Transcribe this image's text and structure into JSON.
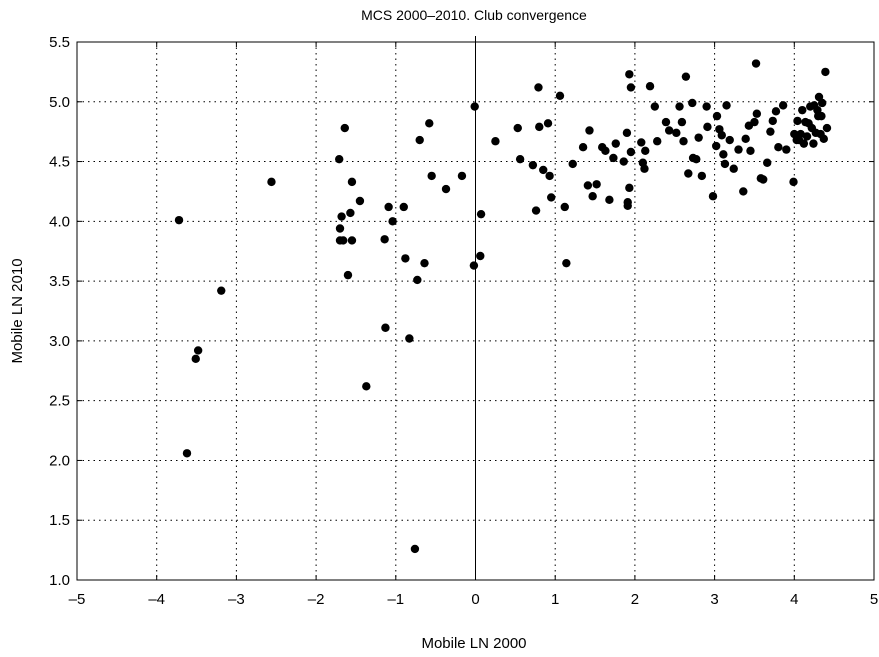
{
  "chart_data": {
    "type": "scatter",
    "title": "MCS 2000–2010. Club convergence",
    "xlabel": "Mobile LN 2000",
    "ylabel": "Mobile LN 2010",
    "xlim": [
      -5,
      5
    ],
    "ylim": [
      1.0,
      5.5
    ],
    "xticks": [
      -5,
      -4,
      -3,
      -2,
      -1,
      0,
      1,
      2,
      3,
      4,
      5
    ],
    "xtick_labels": [
      "–5",
      "–4",
      "–3",
      "–2",
      "–1",
      "0",
      "1",
      "2",
      "3",
      "4",
      "5"
    ],
    "yticks": [
      1.0,
      1.5,
      2.0,
      2.5,
      3.0,
      3.5,
      4.0,
      4.5,
      5.0,
      5.5
    ],
    "ytick_labels": [
      "1.0",
      "1.5",
      "2.0",
      "2.5",
      "3.0",
      "3.5",
      "4.0",
      "4.5",
      "5.0",
      "5.5"
    ],
    "grid": true,
    "vertical_reference_line_x": 0,
    "points": [
      [
        -3.72,
        4.01
      ],
      [
        -3.62,
        2.06
      ],
      [
        -3.51,
        2.85
      ],
      [
        -3.48,
        2.92
      ],
      [
        -3.19,
        3.42
      ],
      [
        -2.56,
        4.33
      ],
      [
        -1.71,
        4.52
      ],
      [
        -1.7,
        3.94
      ],
      [
        -1.7,
        3.84
      ],
      [
        -1.68,
        4.04
      ],
      [
        -1.66,
        3.84
      ],
      [
        -1.64,
        4.78
      ],
      [
        -1.6,
        3.55
      ],
      [
        -1.57,
        4.07
      ],
      [
        -1.55,
        4.33
      ],
      [
        -1.55,
        3.84
      ],
      [
        -1.45,
        4.17
      ],
      [
        -1.37,
        2.62
      ],
      [
        -1.14,
        3.85
      ],
      [
        -1.13,
        3.11
      ],
      [
        -1.09,
        4.12
      ],
      [
        -1.04,
        4.0
      ],
      [
        -0.9,
        4.12
      ],
      [
        -0.88,
        3.69
      ],
      [
        -0.83,
        3.02
      ],
      [
        -0.76,
        1.26
      ],
      [
        -0.73,
        3.51
      ],
      [
        -0.7,
        4.68
      ],
      [
        -0.64,
        3.65
      ],
      [
        -0.58,
        4.82
      ],
      [
        -0.55,
        4.38
      ],
      [
        -0.37,
        4.27
      ],
      [
        -0.17,
        4.38
      ],
      [
        -0.02,
        3.63
      ],
      [
        -0.01,
        4.96
      ],
      [
        0.06,
        3.71
      ],
      [
        0.07,
        4.06
      ],
      [
        0.25,
        4.67
      ],
      [
        0.53,
        4.78
      ],
      [
        0.56,
        4.52
      ],
      [
        0.72,
        4.47
      ],
      [
        0.76,
        4.09
      ],
      [
        0.79,
        5.12
      ],
      [
        0.8,
        4.79
      ],
      [
        0.85,
        4.43
      ],
      [
        0.91,
        4.82
      ],
      [
        0.93,
        4.38
      ],
      [
        0.95,
        4.2
      ],
      [
        1.06,
        5.05
      ],
      [
        1.12,
        4.12
      ],
      [
        1.14,
        3.65
      ],
      [
        1.22,
        4.48
      ],
      [
        1.35,
        4.62
      ],
      [
        1.41,
        4.3
      ],
      [
        1.43,
        4.76
      ],
      [
        1.47,
        4.21
      ],
      [
        1.52,
        4.31
      ],
      [
        1.59,
        4.62
      ],
      [
        1.63,
        4.59
      ],
      [
        1.68,
        4.18
      ],
      [
        1.73,
        4.53
      ],
      [
        1.76,
        4.65
      ],
      [
        1.86,
        4.5
      ],
      [
        1.9,
        4.74
      ],
      [
        1.91,
        4.16
      ],
      [
        1.91,
        4.13
      ],
      [
        1.93,
        4.28
      ],
      [
        1.93,
        5.23
      ],
      [
        1.95,
        5.12
      ],
      [
        1.95,
        4.58
      ],
      [
        2.08,
        4.66
      ],
      [
        2.1,
        4.49
      ],
      [
        2.12,
        4.44
      ],
      [
        2.13,
        4.59
      ],
      [
        2.19,
        5.13
      ],
      [
        2.25,
        4.96
      ],
      [
        2.28,
        4.67
      ],
      [
        2.39,
        4.83
      ],
      [
        2.43,
        4.76
      ],
      [
        2.52,
        4.74
      ],
      [
        2.56,
        4.96
      ],
      [
        2.59,
        4.83
      ],
      [
        2.61,
        4.67
      ],
      [
        2.64,
        5.21
      ],
      [
        2.67,
        4.4
      ],
      [
        2.72,
        4.99
      ],
      [
        2.73,
        4.53
      ],
      [
        2.77,
        4.52
      ],
      [
        2.8,
        4.7
      ],
      [
        2.84,
        4.38
      ],
      [
        2.9,
        4.96
      ],
      [
        2.91,
        4.79
      ],
      [
        2.98,
        4.21
      ],
      [
        3.02,
        4.63
      ],
      [
        3.03,
        4.88
      ],
      [
        3.06,
        4.77
      ],
      [
        3.09,
        4.72
      ],
      [
        3.11,
        4.56
      ],
      [
        3.13,
        4.48
      ],
      [
        3.15,
        4.97
      ],
      [
        3.19,
        4.68
      ],
      [
        3.24,
        4.44
      ],
      [
        3.3,
        4.6
      ],
      [
        3.36,
        4.25
      ],
      [
        3.39,
        4.69
      ],
      [
        3.43,
        4.8
      ],
      [
        3.45,
        4.59
      ],
      [
        3.5,
        4.83
      ],
      [
        3.52,
        5.32
      ],
      [
        3.53,
        4.9
      ],
      [
        3.58,
        4.36
      ],
      [
        3.61,
        4.35
      ],
      [
        3.66,
        4.49
      ],
      [
        3.7,
        4.75
      ],
      [
        3.73,
        4.84
      ],
      [
        3.77,
        4.92
      ],
      [
        3.8,
        4.62
      ],
      [
        3.86,
        4.97
      ],
      [
        3.9,
        4.6
      ],
      [
        3.99,
        4.33
      ],
      [
        4.0,
        4.73
      ],
      [
        4.03,
        4.68
      ],
      [
        4.04,
        4.84
      ],
      [
        4.06,
        4.68
      ],
      [
        4.08,
        4.73
      ],
      [
        4.1,
        4.93
      ],
      [
        4.12,
        4.65
      ],
      [
        4.14,
        4.83
      ],
      [
        4.16,
        4.71
      ],
      [
        4.18,
        4.82
      ],
      [
        4.2,
        4.96
      ],
      [
        4.22,
        4.78
      ],
      [
        4.24,
        4.65
      ],
      [
        4.25,
        4.97
      ],
      [
        4.27,
        4.74
      ],
      [
        4.29,
        4.93
      ],
      [
        4.3,
        4.88
      ],
      [
        4.31,
        5.04
      ],
      [
        4.33,
        4.73
      ],
      [
        4.34,
        4.88
      ],
      [
        4.35,
        4.99
      ],
      [
        4.37,
        4.69
      ],
      [
        4.39,
        5.25
      ],
      [
        4.41,
        4.78
      ]
    ]
  }
}
